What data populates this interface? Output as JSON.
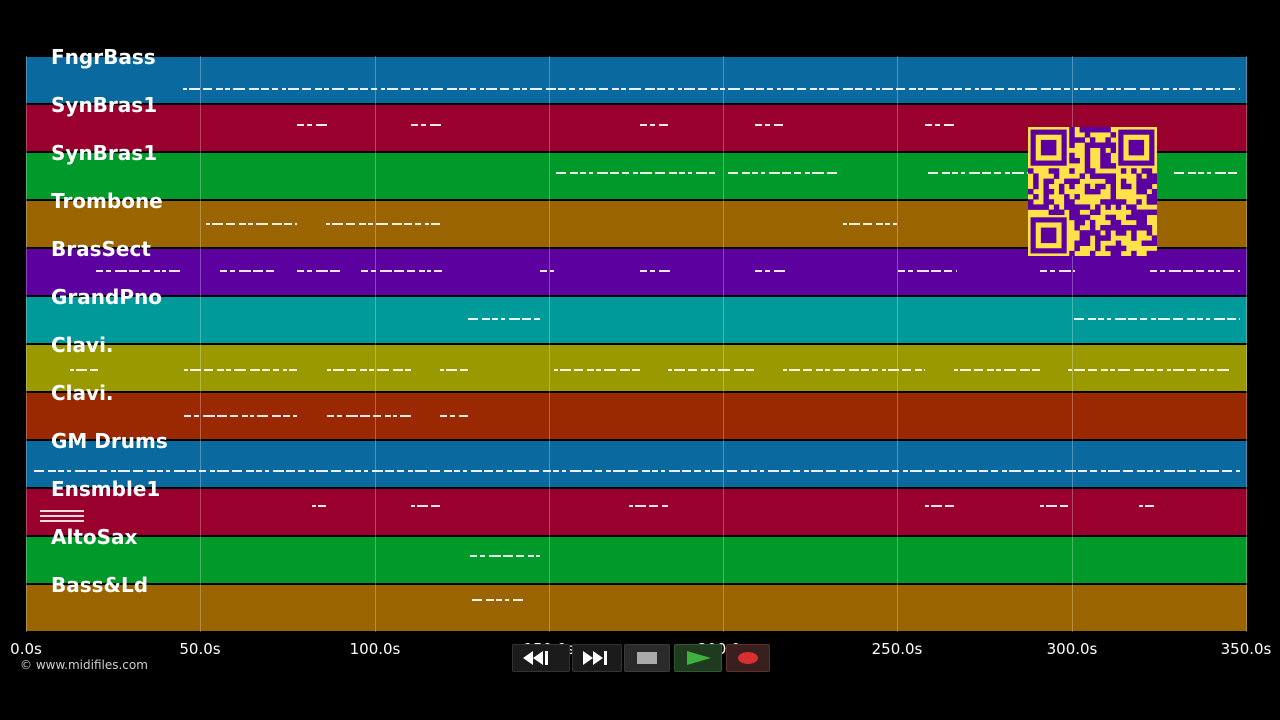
{
  "tracks": [
    {
      "label": "FngrBass",
      "color": "#0a6aa0"
    },
    {
      "label": "SynBras1",
      "color": "#9a002e"
    },
    {
      "label": "SynBras1",
      "color": "#009a2a"
    },
    {
      "label": "Trombone",
      "color": "#9a6400"
    },
    {
      "label": "BrasSect",
      "color": "#5c00a0"
    },
    {
      "label": "GrandPno",
      "color": "#009a9a"
    },
    {
      "label": "Clavi.",
      "color": "#9a9a00"
    },
    {
      "label": "Clavi.",
      "color": "#9a2800"
    },
    {
      "label": "GM Drums",
      "color": "#0a6aa0"
    },
    {
      "label": "Ensmble1",
      "color": "#9a002e"
    },
    {
      "label": "AltoSax",
      "color": "#009a2a"
    },
    {
      "label": "Bass&Ld",
      "color": "#9a6400"
    }
  ],
  "timeline": {
    "ticks": [
      "0.0s",
      "50.0s",
      "100.0s",
      "150.0s",
      "200.0s",
      "250.0s",
      "300.0s",
      "350.0s"
    ]
  },
  "copyright": "© www.midifiles.com",
  "transport": {
    "rewind_icon": "rewind-icon",
    "fast_forward_icon": "fast-forward-icon",
    "stop_icon": "stop-icon",
    "play_icon": "play-icon",
    "record_icon": "record-icon",
    "play_color": "#3fb040",
    "record_color": "#d83030"
  },
  "qr_code": {
    "color": "#ffe14a",
    "module_color": "#5c00a0"
  }
}
